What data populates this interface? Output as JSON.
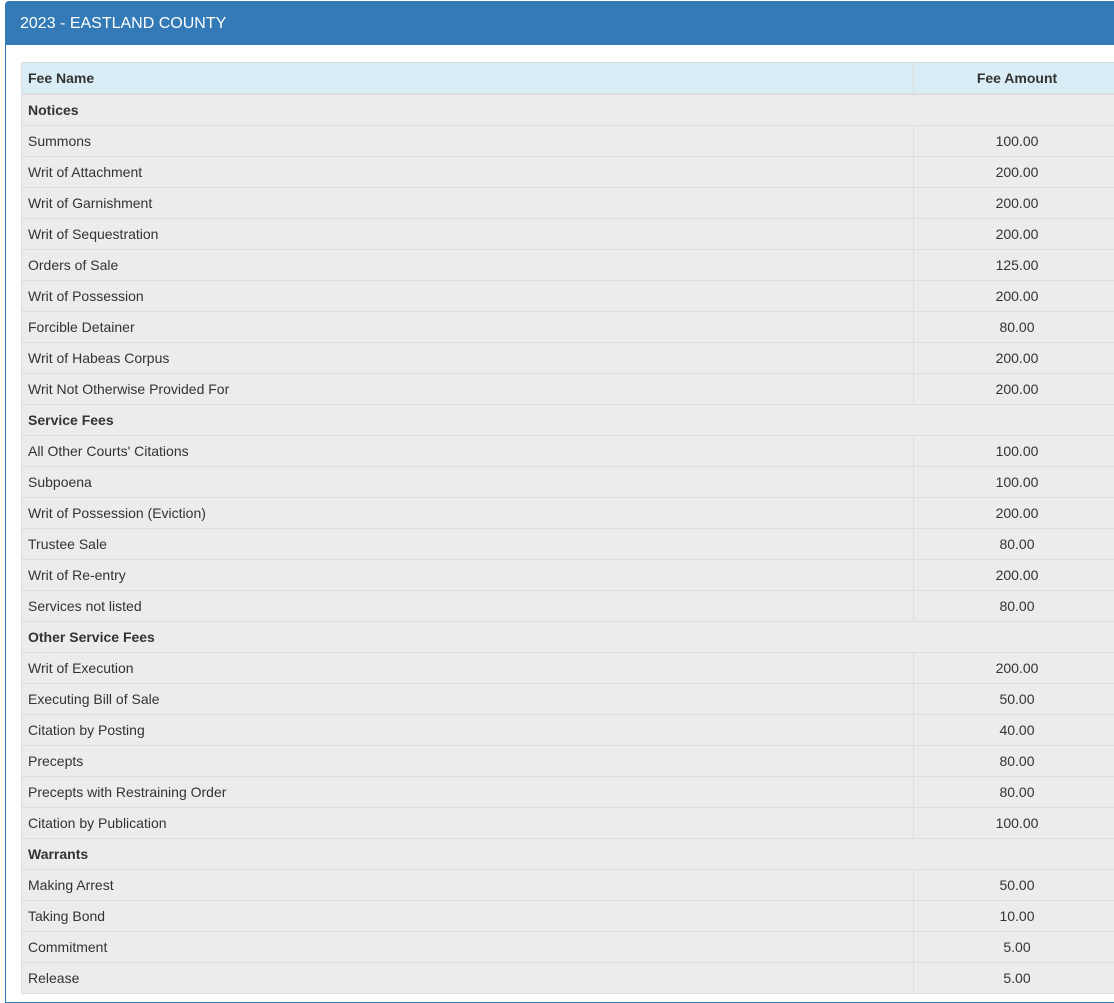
{
  "panel": {
    "title": "2023 - EASTLAND COUNTY"
  },
  "table": {
    "headers": {
      "name": "Fee Name",
      "amount": "Fee Amount"
    },
    "sections": [
      {
        "title": "Notices",
        "rows": [
          {
            "name": "Summons",
            "amount": "100.00"
          },
          {
            "name": "Writ of Attachment",
            "amount": "200.00"
          },
          {
            "name": "Writ of Garnishment",
            "amount": "200.00"
          },
          {
            "name": "Writ of Sequestration",
            "amount": "200.00"
          },
          {
            "name": "Orders of Sale",
            "amount": "125.00"
          },
          {
            "name": "Writ of Possession",
            "amount": "200.00"
          },
          {
            "name": "Forcible Detainer",
            "amount": "80.00"
          },
          {
            "name": "Writ of Habeas Corpus",
            "amount": "200.00"
          },
          {
            "name": "Writ Not Otherwise Provided For",
            "amount": "200.00"
          }
        ]
      },
      {
        "title": "Service Fees",
        "rows": [
          {
            "name": "All Other Courts' Citations",
            "amount": "100.00"
          },
          {
            "name": "Subpoena",
            "amount": "100.00"
          },
          {
            "name": "Writ of Possession (Eviction)",
            "amount": "200.00"
          },
          {
            "name": "Trustee Sale",
            "amount": "80.00"
          },
          {
            "name": "Writ of Re-entry",
            "amount": "200.00"
          },
          {
            "name": "Services not listed",
            "amount": "80.00"
          }
        ]
      },
      {
        "title": "Other Service Fees",
        "rows": [
          {
            "name": "Writ of Execution",
            "amount": "200.00"
          },
          {
            "name": "Executing Bill of Sale",
            "amount": "50.00"
          },
          {
            "name": "Citation by Posting",
            "amount": "40.00"
          },
          {
            "name": "Precepts",
            "amount": "80.00"
          },
          {
            "name": "Precepts with Restraining Order",
            "amount": "80.00"
          },
          {
            "name": "Citation by Publication",
            "amount": "100.00"
          }
        ]
      },
      {
        "title": "Warrants",
        "rows": [
          {
            "name": "Making Arrest",
            "amount": "50.00"
          },
          {
            "name": "Taking Bond",
            "amount": "10.00"
          },
          {
            "name": "Commitment",
            "amount": "5.00"
          },
          {
            "name": "Release",
            "amount": "5.00"
          }
        ]
      }
    ]
  }
}
